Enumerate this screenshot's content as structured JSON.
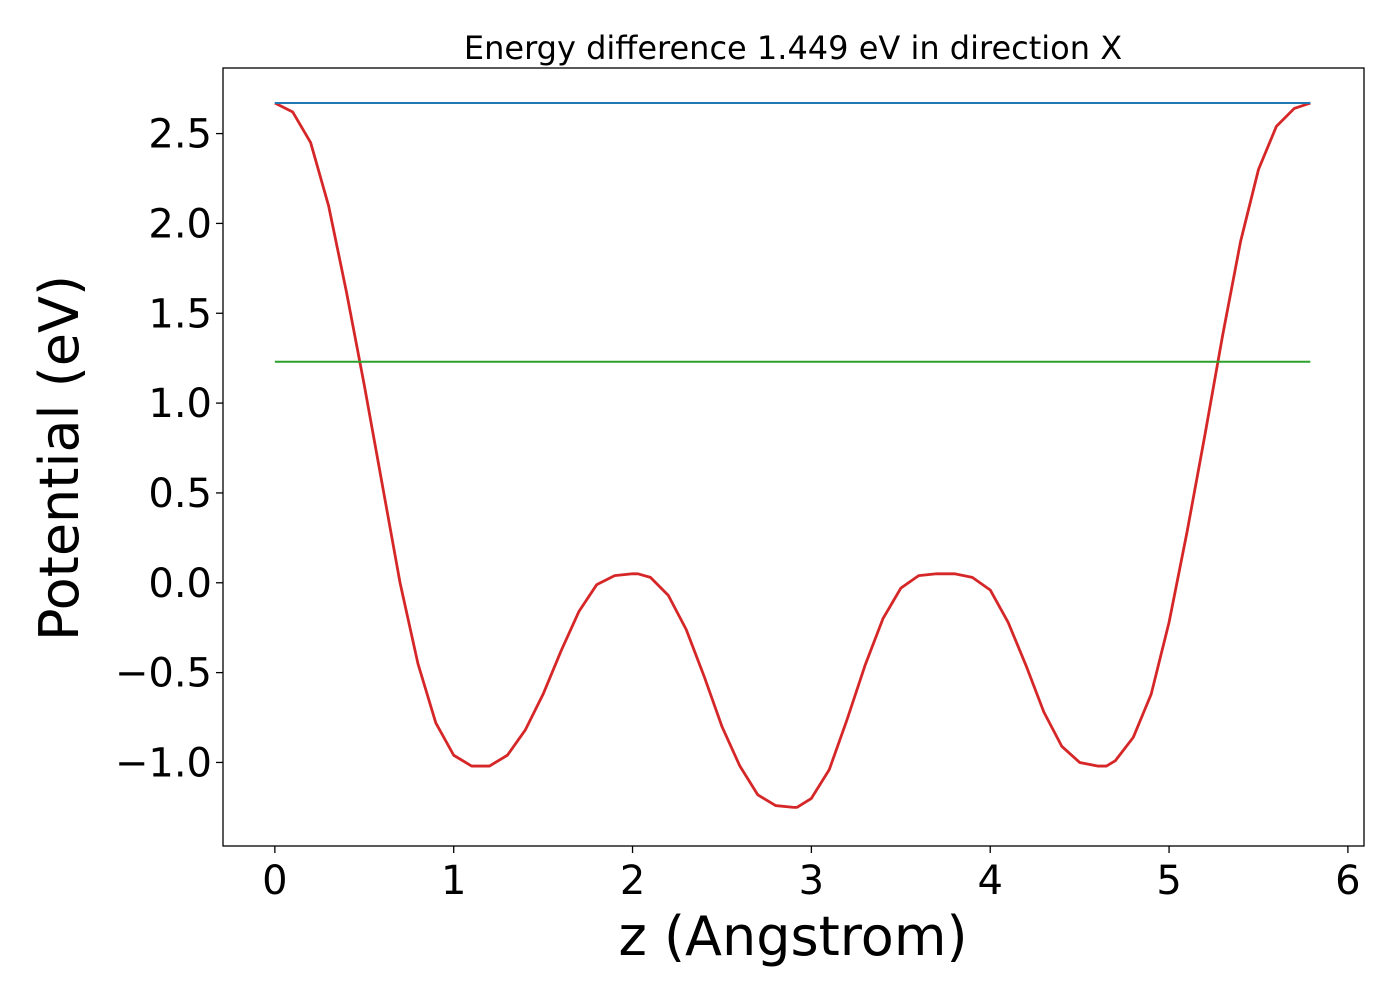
{
  "chart_data": {
    "type": "line",
    "title": "Energy difference 1.449 eV in direction X",
    "xlabel": "z (Angstrom)",
    "ylabel": "Potential (eV)",
    "xlim": [
      -0.29,
      6.09
    ],
    "ylim": [
      -1.465,
      2.865
    ],
    "x_ticks": [
      0,
      1,
      2,
      3,
      4,
      5,
      6
    ],
    "x_tick_labels": [
      "0",
      "1",
      "2",
      "3",
      "4",
      "5",
      "6"
    ],
    "y_ticks": [
      -1.0,
      -0.5,
      0.0,
      0.5,
      1.0,
      1.5,
      2.0,
      2.5
    ],
    "y_tick_labels": [
      "−1.0",
      "−0.5",
      "0.0",
      "0.5",
      "1.0",
      "1.5",
      "2.0",
      "2.5"
    ],
    "grid": false,
    "series": [
      {
        "color": "#d62728",
        "x": [
          0.0,
          0.1,
          0.2,
          0.3,
          0.4,
          0.5,
          0.6,
          0.7,
          0.8,
          0.9,
          1.0,
          1.1,
          1.2,
          1.3,
          1.4,
          1.5,
          1.6,
          1.7,
          1.8,
          1.9,
          2.0,
          2.03,
          2.1,
          2.2,
          2.3,
          2.4,
          2.5,
          2.6,
          2.7,
          2.8,
          2.9,
          2.92,
          3.0,
          3.1,
          3.2,
          3.3,
          3.4,
          3.5,
          3.6,
          3.7,
          3.8,
          3.9,
          4.0,
          4.1,
          4.2,
          4.3,
          4.4,
          4.5,
          4.6,
          4.65,
          4.7,
          4.8,
          4.9,
          5.0,
          5.1,
          5.2,
          5.3,
          5.4,
          5.5,
          5.6,
          5.7,
          5.79
        ],
        "y": [
          2.67,
          2.62,
          2.45,
          2.1,
          1.62,
          1.1,
          0.55,
          0.0,
          -0.45,
          -0.78,
          -0.96,
          -1.02,
          -1.02,
          -0.96,
          -0.82,
          -0.62,
          -0.38,
          -0.16,
          -0.01,
          0.04,
          0.05,
          0.05,
          0.03,
          -0.07,
          -0.26,
          -0.52,
          -0.8,
          -1.02,
          -1.18,
          -1.24,
          -1.25,
          -1.25,
          -1.2,
          -1.04,
          -0.76,
          -0.46,
          -0.2,
          -0.03,
          0.04,
          0.05,
          0.05,
          0.03,
          -0.04,
          -0.22,
          -0.46,
          -0.72,
          -0.91,
          -1.0,
          -1.02,
          -1.02,
          -0.99,
          -0.86,
          -0.62,
          -0.22,
          0.28,
          0.82,
          1.38,
          1.9,
          2.3,
          2.54,
          2.64,
          2.67
        ]
      },
      {
        "color": "#1f77b4",
        "x": [
          0.0,
          5.79
        ],
        "y": [
          2.67,
          2.67
        ]
      },
      {
        "color": "#2ca02c",
        "x": [
          0.0,
          5.79
        ],
        "y": [
          1.23,
          1.23
        ]
      }
    ]
  }
}
